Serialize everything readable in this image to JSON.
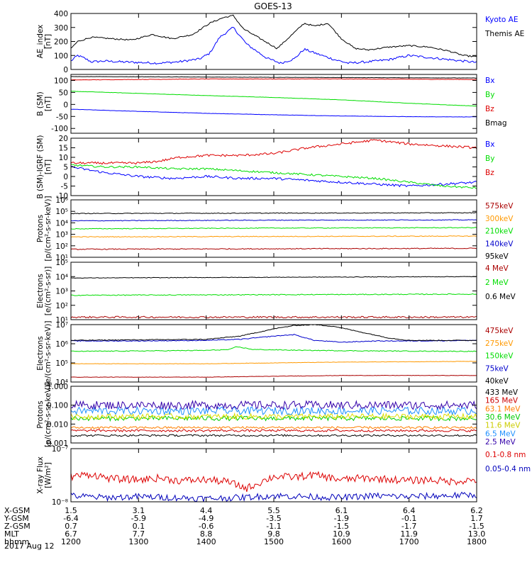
{
  "title": "GOES-13",
  "chart_data": [
    {
      "type": "line",
      "id": "ae",
      "ylabel": "AE_index\n[nT]",
      "ylim": [
        0,
        400
      ],
      "yticks": [
        0,
        100,
        200,
        300,
        400
      ],
      "yticklabels": [
        "0",
        "100",
        "200",
        "300",
        "400"
      ],
      "series": [
        {
          "name": "Kyoto AE",
          "color": "#0000ff",
          "noise": 8,
          "x": [
            12.0,
            12.1,
            12.2,
            12.3,
            12.5,
            12.7,
            13.0,
            13.3,
            13.6,
            13.9,
            14.05,
            14.2,
            14.4,
            14.6,
            14.9,
            15.1,
            15.3,
            15.45,
            15.65,
            15.9,
            16.1,
            16.4,
            16.7,
            17.0,
            17.3,
            17.6,
            17.9,
            18.0
          ],
          "y": [
            60,
            100,
            80,
            55,
            60,
            55,
            50,
            45,
            55,
            75,
            115,
            230,
            300,
            180,
            80,
            45,
            75,
            145,
            110,
            70,
            45,
            55,
            70,
            100,
            85,
            70,
            55,
            50
          ]
        },
        {
          "name": "Themis AE",
          "color": "#000000",
          "noise": 5,
          "x": [
            12.0,
            12.1,
            12.3,
            12.6,
            12.9,
            13.2,
            13.5,
            13.8,
            14.05,
            14.25,
            14.4,
            14.55,
            14.8,
            15.05,
            15.25,
            15.45,
            15.6,
            15.8,
            16.0,
            16.2,
            16.4,
            16.7,
            17.0,
            17.3,
            17.6,
            17.8,
            18.0
          ],
          "y": [
            150,
            200,
            230,
            220,
            210,
            250,
            220,
            250,
            330,
            370,
            385,
            290,
            220,
            150,
            240,
            330,
            310,
            330,
            220,
            150,
            140,
            160,
            170,
            160,
            130,
            100,
            90
          ]
        }
      ]
    },
    {
      "type": "line",
      "id": "bsm",
      "ylabel": "B (SM)\n[nT]",
      "ylim": [
        -120,
        125
      ],
      "yticks": [
        -100,
        -50,
        0,
        50,
        100
      ],
      "yticklabels": [
        "-100",
        "-50",
        "0",
        "50",
        "100"
      ],
      "series": [
        {
          "name": "Bx",
          "color": "#0000ff",
          "noise": 0.6,
          "x": [
            12.0,
            13.0,
            14.0,
            15.0,
            16.0,
            17.0,
            18.0
          ],
          "y": [
            -20,
            -29,
            -37,
            -43,
            -48,
            -51,
            -52
          ]
        },
        {
          "name": "By",
          "color": "#00dd00",
          "noise": 0.6,
          "x": [
            12.0,
            13.0,
            14.0,
            15.0,
            16.0,
            17.0,
            18.0
          ],
          "y": [
            55,
            46,
            37,
            29,
            19,
            5,
            -7
          ]
        },
        {
          "name": "Bz",
          "color": "#dd0000",
          "noise": 0.8,
          "x": [
            12.0,
            13.0,
            14.0,
            15.0,
            16.0,
            17.0,
            18.0
          ],
          "y": [
            102,
            104,
            106,
            106,
            106,
            105,
            104
          ]
        },
        {
          "name": "Bmag",
          "color": "#000000",
          "noise": 0.5,
          "x": [
            12.0,
            13.0,
            14.0,
            15.0,
            16.0,
            17.0,
            18.0
          ],
          "y": [
            116,
            115,
            114,
            113,
            112,
            111,
            110
          ]
        }
      ]
    },
    {
      "type": "line",
      "id": "bigrf",
      "ylabel": "B (SM)-IGRF (SM)\n[nT]",
      "ylim": [
        -10,
        20
      ],
      "yticks": [
        -10,
        -5,
        0,
        5,
        10,
        15,
        20
      ],
      "yticklabels": [
        "-10",
        "-5",
        "0",
        "5",
        "10",
        "15",
        "20"
      ],
      "series": [
        {
          "name": "Bx",
          "color": "#0000ff",
          "noise": 0.6,
          "x": [
            12.0,
            12.5,
            13.0,
            13.5,
            14.0,
            14.5,
            15.0,
            15.5,
            16.0,
            16.5,
            17.0,
            17.5,
            18.0
          ],
          "y": [
            5,
            2,
            0,
            -1,
            0,
            -1,
            -1,
            -2,
            -3,
            -4,
            -5,
            -4,
            -3
          ]
        },
        {
          "name": "By",
          "color": "#00dd00",
          "noise": 0.5,
          "x": [
            12.0,
            12.5,
            13.0,
            13.5,
            14.0,
            14.5,
            15.0,
            15.5,
            16.0,
            16.5,
            17.0,
            17.5,
            18.0
          ],
          "y": [
            6,
            5,
            5,
            4,
            4,
            3,
            2,
            1,
            0,
            -1,
            -3,
            -5,
            -6
          ]
        },
        {
          "name": "Bz",
          "color": "#dd0000",
          "noise": 0.6,
          "x": [
            12.0,
            12.5,
            13.0,
            13.3,
            13.6,
            14.0,
            14.5,
            15.0,
            15.5,
            16.0,
            16.5,
            17.0,
            17.5,
            18.0
          ],
          "y": [
            7,
            7,
            7,
            8,
            10,
            11,
            11,
            12,
            15,
            17,
            19,
            17,
            16,
            15
          ]
        }
      ]
    },
    {
      "type": "line",
      "id": "prot",
      "log": true,
      "ylabel": "Protons\n[p/(cm²-s-sr-keV)]",
      "ylim": [
        10,
        1000000
      ],
      "yticks": [
        10,
        100,
        1000,
        10000,
        100000,
        1000000
      ],
      "yticklabels": [
        "10¹",
        "10²",
        "10³",
        "10⁴",
        "10⁵",
        "10⁶"
      ],
      "series": [
        {
          "name": "575keV",
          "color": "#aa0000",
          "noise": 0.04,
          "x": [
            12.0,
            15.0,
            18.0
          ],
          "y": [
            50,
            55,
            60
          ]
        },
        {
          "name": "300keV",
          "color": "#ff9900",
          "noise": 0.03,
          "x": [
            12.0,
            15.0,
            18.0
          ],
          "y": [
            600,
            650,
            700
          ]
        },
        {
          "name": "210keV",
          "color": "#00dd00",
          "noise": 0.03,
          "x": [
            12.0,
            15.0,
            18.0
          ],
          "y": [
            3000,
            3500,
            3800
          ]
        },
        {
          "name": "140keV",
          "color": "#0000cc",
          "noise": 0.03,
          "x": [
            12.0,
            15.0,
            18.0
          ],
          "y": [
            15000,
            17000,
            18000
          ]
        },
        {
          "name": "95keV",
          "color": "#000000",
          "noise": 0.03,
          "x": [
            12.0,
            15.0,
            18.0
          ],
          "y": [
            65000,
            70000,
            75000
          ]
        }
      ]
    },
    {
      "type": "line",
      "id": "elec1",
      "log": true,
      "ylabel": "Electrons\n[e/(cm²-s-sr)]",
      "ylim": [
        10,
        100000
      ],
      "yticks": [
        10,
        100,
        1000,
        10000,
        100000
      ],
      "yticklabels": [
        "10¹",
        "10²",
        "10³",
        "10⁴",
        "10⁵"
      ],
      "series": [
        {
          "name": "4 MeV",
          "color": "#aa0000",
          "noise": 0.06,
          "x": [
            12.0,
            15.0,
            18.0
          ],
          "y": [
            15,
            15,
            15
          ]
        },
        {
          "name": "2 MeV",
          "color": "#00dd00",
          "noise": 0.03,
          "x": [
            12.0,
            15.0,
            18.0
          ],
          "y": [
            500,
            550,
            600
          ]
        },
        {
          "name": "0.6 MeV",
          "color": "#000000",
          "noise": 0.02,
          "x": [
            12.0,
            15.0,
            18.0
          ],
          "y": [
            8000,
            9000,
            10000
          ]
        }
      ]
    },
    {
      "type": "line",
      "id": "elec2",
      "log": true,
      "ylabel": "Electrons\n[e/(cm²-s-sr-keV)]",
      "ylim": [
        10000,
        10000000
      ],
      "yticks": [
        10000,
        100000,
        1000000,
        10000000
      ],
      "yticklabels": [
        "10⁴",
        "10⁵",
        "10⁶",
        "10⁷"
      ],
      "series": [
        {
          "name": "475keV",
          "color": "#aa0000",
          "noise": 0.01,
          "x": [
            12.0,
            14.0,
            15.0,
            16.0,
            18.0
          ],
          "y": [
            18000,
            18000,
            20000,
            22000,
            22000
          ]
        },
        {
          "name": "275keV",
          "color": "#ff9900",
          "noise": 0.01,
          "x": [
            12.0,
            14.0,
            15.0,
            16.0,
            18.0
          ],
          "y": [
            90000,
            90000,
            100000,
            110000,
            120000
          ]
        },
        {
          "name": "150keV",
          "color": "#00dd00",
          "noise": 0.02,
          "x": [
            12.0,
            13.0,
            14.0,
            14.35,
            14.45,
            14.7,
            15.5,
            16.5,
            18.0
          ],
          "y": [
            400000,
            420000,
            450000,
            500000,
            700000,
            500000,
            450000,
            420000,
            400000
          ]
        },
        {
          "name": "75keV",
          "color": "#0000cc",
          "noise": 0.02,
          "x": [
            12.0,
            13.0,
            14.0,
            14.5,
            15.0,
            15.3,
            15.6,
            16.0,
            16.5,
            17.0,
            18.0
          ],
          "y": [
            1400000,
            1400000,
            1500000,
            1700000,
            2500000,
            3000000,
            1500000,
            1200000,
            1400000,
            1400000,
            1500000
          ]
        },
        {
          "name": "40keV",
          "color": "#000000",
          "noise": 0.02,
          "x": [
            12.0,
            13.0,
            14.0,
            14.5,
            15.0,
            15.3,
            15.6,
            15.9,
            16.3,
            16.7,
            17.0,
            18.0
          ],
          "y": [
            1500000,
            1600000,
            1700000,
            2500000,
            6000000,
            9000000,
            10000000,
            8000000,
            4000000,
            2000000,
            1500000,
            1500000
          ]
        }
      ]
    },
    {
      "type": "line",
      "id": "prot2",
      "log": true,
      "ylabel": "Protons\n[p/(cm²-s-sr-keV)]",
      "ylim": [
        0.001,
        1.0
      ],
      "yticks": [
        0.001,
        0.01,
        0.1,
        1.0
      ],
      "yticklabels": [
        "0.001",
        "0.010",
        "0.100",
        "1.000"
      ],
      "series": [
        {
          "name": "433 MeV",
          "color": "#000000",
          "noise": 0.05,
          "x": [
            12.0,
            18.0
          ],
          "y": [
            0.0025,
            0.0025
          ]
        },
        {
          "name": "165 MeV",
          "color": "#cc0000",
          "noise": 0.06,
          "x": [
            12.0,
            18.0
          ],
          "y": [
            0.0045,
            0.0045
          ]
        },
        {
          "name": "63.1 MeV",
          "color": "#ff7f00",
          "noise": 0.06,
          "x": [
            12.0,
            18.0
          ],
          "y": [
            0.0065,
            0.0065
          ]
        },
        {
          "name": "30.6 MeV",
          "color": "#00cc00",
          "noise": 0.12,
          "x": [
            12.0,
            18.0
          ],
          "y": [
            0.02,
            0.02
          ]
        },
        {
          "name": "11.6 MeV",
          "color": "#dddd00",
          "noise": 0.15,
          "x": [
            12.0,
            18.0
          ],
          "y": [
            0.025,
            0.025
          ]
        },
        {
          "name": "6.5 MeV",
          "color": "#1e90ff",
          "noise": 0.2,
          "x": [
            12.0,
            18.0
          ],
          "y": [
            0.05,
            0.05
          ]
        },
        {
          "name": "2.5 MeV",
          "color": "#3300aa",
          "noise": 0.22,
          "x": [
            12.0,
            18.0
          ],
          "y": [
            0.1,
            0.1
          ]
        }
      ]
    },
    {
      "type": "line",
      "id": "xray",
      "log": true,
      "ylabel": "X-ray Flux\n[W/m²]",
      "ylim": [
        1e-08,
        1e-07
      ],
      "yticks": [
        1e-08,
        1e-07
      ],
      "yticklabels": [
        "10⁻⁸",
        "10⁻⁷"
      ],
      "series": [
        {
          "name": "0.1-0.8 nm",
          "color": "#dd0000",
          "noise": 0.07,
          "x": [
            12.0,
            12.3,
            12.6,
            13.0,
            13.3,
            13.6,
            14.0,
            14.3,
            14.6,
            15.0,
            15.3,
            15.6,
            16.0,
            16.3,
            16.6,
            17.0,
            17.3,
            17.6,
            18.0
          ],
          "y": [
            3e-08,
            3.3e-08,
            2.7e-08,
            2.6e-08,
            2.8e-08,
            2.5e-08,
            2.6e-08,
            2.4e-08,
            1.8e-08,
            3e-08,
            2.9e-08,
            3.2e-08,
            2.6e-08,
            2.8e-08,
            2.7e-08,
            2.5e-08,
            2.6e-08,
            2.4e-08,
            2.6e-08
          ]
        },
        {
          "name": "0.05-0.4 nm",
          "color": "#0000bb",
          "noise": 0.06,
          "x": [
            12.0,
            12.5,
            13.0,
            13.5,
            14.0,
            14.5,
            15.0,
            15.5,
            16.0,
            16.5,
            17.0,
            17.5,
            18.0
          ],
          "y": [
            1.3e-08,
            1.2e-08,
            1.25e-08,
            1.2e-08,
            1.15e-08,
            1.2e-08,
            1.3e-08,
            1.25e-08,
            1.2e-08,
            1.3e-08,
            1.25e-08,
            1.3e-08,
            1.35e-08
          ]
        }
      ]
    }
  ],
  "xaxis": {
    "xlim": [
      12.0,
      18.0
    ],
    "rows": [
      {
        "name": "X-GSM",
        "values": [
          "1.5",
          "3.1",
          "4.4",
          "5.5",
          "6.1",
          "6.4",
          "6.2"
        ]
      },
      {
        "name": "Y-GSM",
        "values": [
          "-6.4",
          "-5.9",
          "-4.9",
          "-3.5",
          "-1.9",
          "-0.1",
          "1.7"
        ]
      },
      {
        "name": "Z-GSM",
        "values": [
          "0.7",
          "0.1",
          "-0.6",
          "-1.1",
          "-1.5",
          "-1.7",
          "-1.5"
        ]
      },
      {
        "name": "MLT",
        "values": [
          "6.7",
          "7.7",
          "8.8",
          "9.8",
          "10.9",
          "11.9",
          "13.0"
        ]
      },
      {
        "name": "hhmm",
        "values": [
          "1200",
          "1300",
          "1400",
          "1500",
          "1600",
          "1700",
          "1800"
        ]
      }
    ],
    "date": "2017 Aug 12"
  }
}
